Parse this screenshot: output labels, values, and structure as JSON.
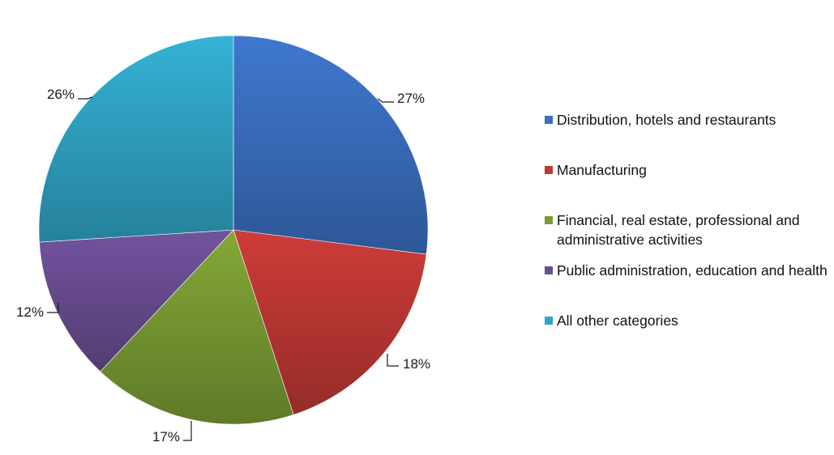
{
  "chart_data": {
    "type": "pie",
    "title": "",
    "legend_position": "right",
    "start_angle_deg": 0,
    "direction": "clockwise",
    "slices": [
      {
        "label": "Distribution, hotels and restaurants",
        "value": 27,
        "display": "27%",
        "color": "#3a6fc0"
      },
      {
        "label": "Manufacturing",
        "value": 18,
        "display": "18%",
        "color": "#bf3835"
      },
      {
        "label": "Financial, real estate, professional and administrative activities",
        "value": 17,
        "display": "17%",
        "color": "#7a9c33"
      },
      {
        "label": "Public administration, education and health",
        "value": 12,
        "display": "12%",
        "color": "#6a4d92"
      },
      {
        "label": "All other categories",
        "value": 26,
        "display": "26%",
        "color": "#31a5c6"
      }
    ]
  }
}
